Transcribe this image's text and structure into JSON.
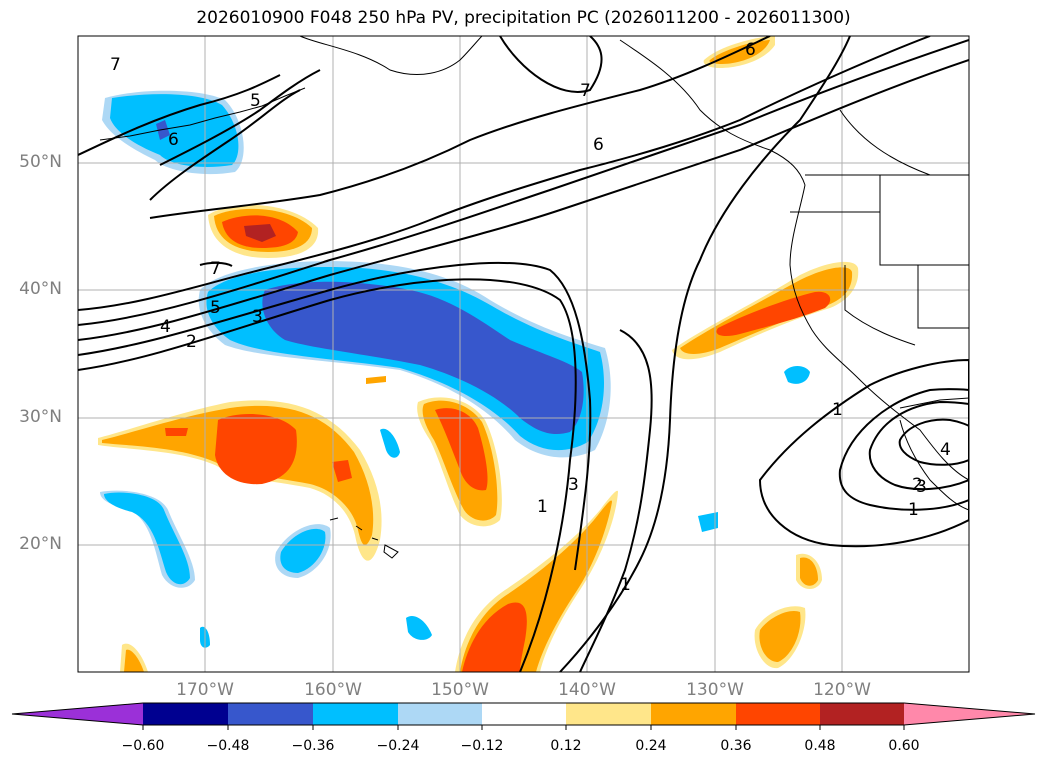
{
  "title": "2026010900 F048 250 hPa PV, precipitation PC (2026011200 - 2026011300)",
  "lat_labels": [
    "50°N",
    "40°N",
    "30°N",
    "20°N"
  ],
  "lon_labels": [
    "170°W",
    "160°W",
    "150°W",
    "140°W",
    "130°W",
    "120°W"
  ],
  "colorbar": {
    "tick_labels": [
      "−0.60",
      "−0.48",
      "−0.36",
      "−0.24",
      "−0.12",
      "0.12",
      "0.24",
      "0.36",
      "0.48",
      "0.60"
    ],
    "colors": [
      "#9b30d8",
      "#000090",
      "#3757cc",
      "#00bfff",
      "#add8f5",
      "#ffffff",
      "#ffe68a",
      "#ffa500",
      "#ff4500",
      "#b22222",
      "#ff88aa"
    ]
  },
  "contour_labels": [
    "7",
    "5",
    "6",
    "7",
    "6",
    "6",
    "7",
    "5",
    "4",
    "3",
    "2",
    "1",
    "3",
    "1",
    "1",
    "1",
    "2",
    "3",
    "4"
  ],
  "colors": {
    "neg_strong": "#3757cc",
    "neg": "#00bfff",
    "neg_light": "#add8f5",
    "pos_light": "#ffe68a",
    "pos": "#ffa500",
    "pos_strong": "#ff4500",
    "pos_max": "#b22222"
  }
}
